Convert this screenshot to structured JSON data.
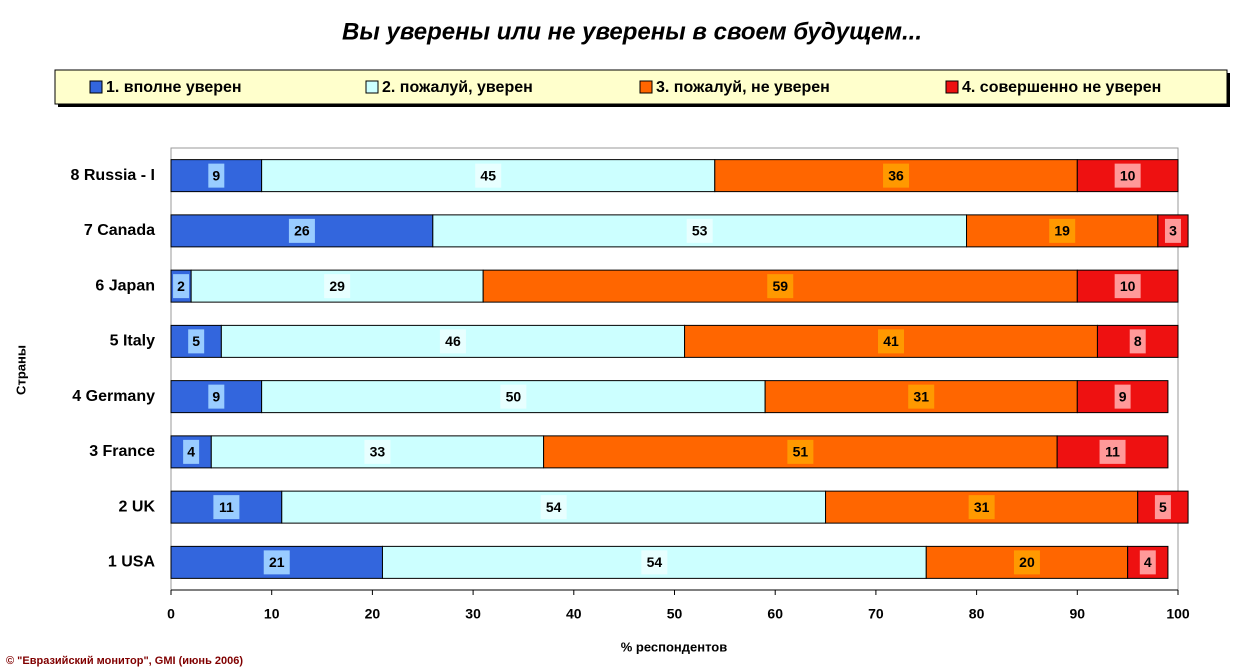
{
  "chart_data": {
    "type": "bar",
    "orientation": "horizontal",
    "stacked": true,
    "title": "Вы уверены или не уверены в своем будущем...",
    "ylabel": "Страны",
    "xlabel": "% респондентов",
    "footer": "© \"Евразийский монитор\", GMI (июнь 2006)",
    "categories": [
      "8 Russia - I",
      "7 Canada",
      "6 Japan",
      "5 Italy",
      "4 Germany",
      "3 France",
      "2 UK",
      "1 USA"
    ],
    "series": [
      {
        "name": "1. вполне уверен",
        "color": "#3366dd",
        "values": [
          9,
          26,
          2,
          5,
          9,
          4,
          11,
          21
        ]
      },
      {
        "name": "2. пожалуй, уверен",
        "color": "#ccffff",
        "values": [
          45,
          53,
          29,
          46,
          50,
          33,
          54,
          54
        ]
      },
      {
        "name": "3. пожалуй, не уверен",
        "color": "#ff6600",
        "values": [
          36,
          19,
          59,
          41,
          31,
          51,
          31,
          20
        ]
      },
      {
        "name": "4. совершенно не уверен",
        "color": "#ee1111",
        "values": [
          10,
          3,
          10,
          8,
          9,
          11,
          5,
          4
        ]
      }
    ],
    "xlim": [
      0,
      100
    ],
    "xticks": [
      0,
      10,
      20,
      30,
      40,
      50,
      60,
      70,
      80,
      90,
      100
    ]
  }
}
